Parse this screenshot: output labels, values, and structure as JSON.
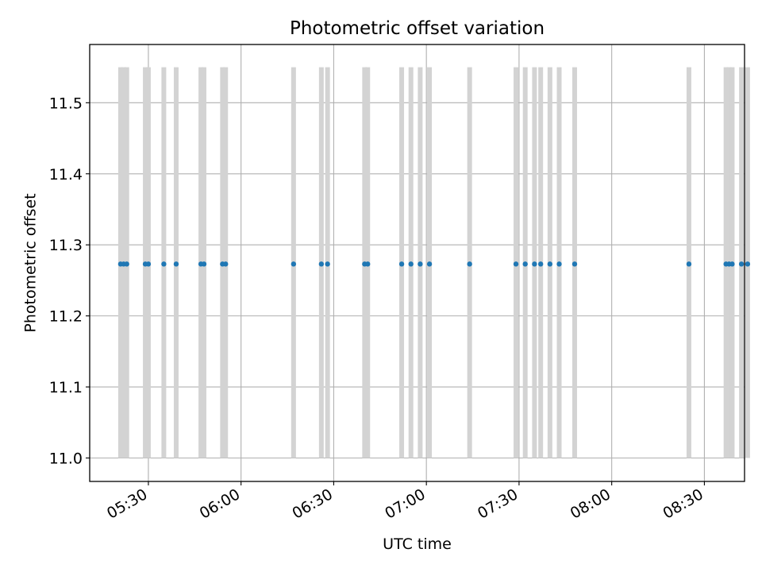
{
  "chart_data": {
    "type": "scatter",
    "title": "Photometric offset variation",
    "xlabel": "UTC time",
    "ylabel": "Photometric offset",
    "grid": true,
    "legend": "none",
    "xlim": [
      "05:11",
      "08:43"
    ],
    "ylim": [
      10.967,
      11.582
    ],
    "x_ticks": [
      "05:30",
      "06:00",
      "06:30",
      "07:00",
      "07:30",
      "08:00",
      "08:30"
    ],
    "y_ticks": [
      "11.0",
      "11.1",
      "11.2",
      "11.3",
      "11.4",
      "11.5"
    ],
    "errorbar": {
      "low": 11.0,
      "high": 11.55,
      "color": "#d3d3d3"
    },
    "marker_color": "#1f77b4",
    "series": [
      {
        "x": [
          "05:21",
          "05:22",
          "05:23",
          "05:29",
          "05:30",
          "05:35",
          "05:39",
          "05:47",
          "05:48",
          "05:54",
          "05:55",
          "06:17",
          "06:26",
          "06:28",
          "06:40",
          "06:41",
          "06:52",
          "06:55",
          "06:58",
          "07:01",
          "07:14",
          "07:29",
          "07:32",
          "07:35",
          "07:37",
          "07:40",
          "07:43",
          "07:48",
          "08:25",
          "08:37",
          "08:38",
          "08:39",
          "08:42",
          "08:44"
        ],
        "y": [
          11.273,
          11.273,
          11.273,
          11.273,
          11.273,
          11.273,
          11.273,
          11.273,
          11.273,
          11.273,
          11.273,
          11.273,
          11.273,
          11.273,
          11.273,
          11.273,
          11.273,
          11.273,
          11.273,
          11.273,
          11.273,
          11.273,
          11.273,
          11.273,
          11.273,
          11.273,
          11.273,
          11.273,
          11.273,
          11.273,
          11.273,
          11.273,
          11.273,
          11.273
        ]
      }
    ]
  }
}
